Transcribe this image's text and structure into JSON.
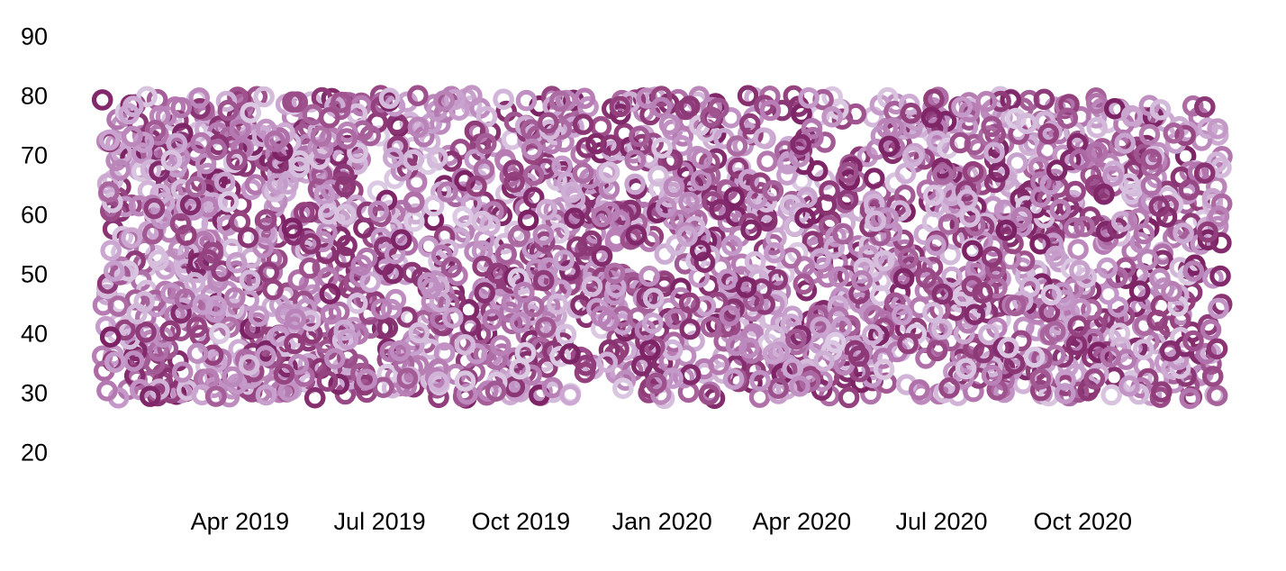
{
  "chart_data": {
    "type": "scatter",
    "title": "",
    "xlabel": "",
    "ylabel": "",
    "legend": "none",
    "grid": "off",
    "axis_lines": "none",
    "background_color": "#ffffff",
    "text_color": "#000000",
    "x_axis": {
      "type": "temporal",
      "tick_labels": [
        "Apr 2019",
        "Jul 2019",
        "Oct 2019",
        "Jan 2020",
        "Apr 2020",
        "Jul 2020",
        "Oct 2020"
      ],
      "tick_days_from_start": [
        90,
        181,
        273,
        365,
        456,
        547,
        639
      ],
      "range_start_label": "Jan 2019",
      "range_end_label": "Dec 2020",
      "range_days": [
        0,
        730
      ]
    },
    "y_axis": {
      "tick_labels": [
        "90",
        "80",
        "70",
        "60",
        "50",
        "40",
        "30",
        "20"
      ],
      "tick_values": [
        90,
        80,
        70,
        60,
        50,
        40,
        30,
        20
      ],
      "axis_range": [
        15,
        95
      ]
    },
    "points": {
      "count": 2400,
      "seed": 1337,
      "x_distribution": "uniform random over full two-year date range",
      "y_distribution": "uniform random",
      "y_min": 29,
      "y_max": 80
    },
    "marker": {
      "shape": "open-circle",
      "radius_px": 9.2,
      "stroke_width_px": 5.2,
      "fill": "none",
      "opacity": 1
    },
    "palette": [
      "#dccae3",
      "#c59bca",
      "#b477af",
      "#94417e",
      "#7b2164"
    ]
  }
}
